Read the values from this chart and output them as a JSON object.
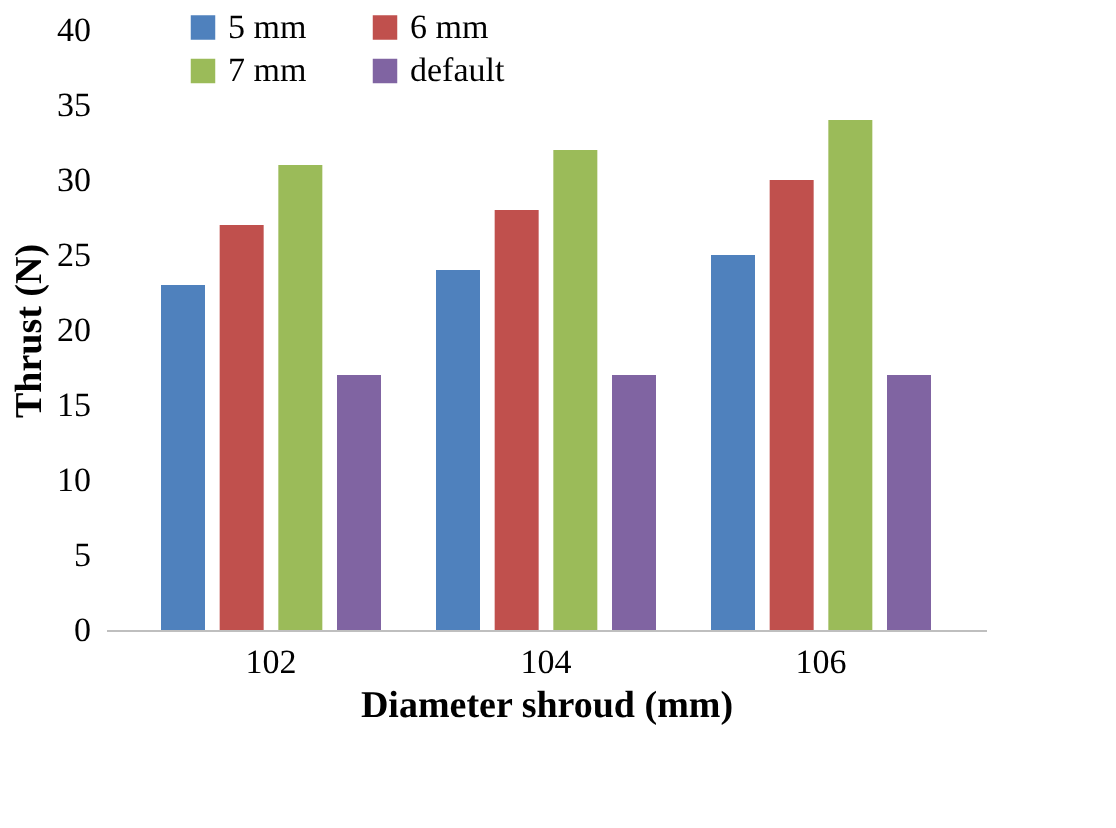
{
  "chart_data": {
    "type": "bar",
    "xlabel": "Diameter shroud (mm)",
    "ylabel": "Thrust (N)",
    "categories": [
      "102",
      "104",
      "106"
    ],
    "series": [
      {
        "name": "5 mm",
        "color": "#4f81bd",
        "values": [
          23,
          24,
          25
        ]
      },
      {
        "name": "6 mm",
        "color": "#c0504d",
        "values": [
          27,
          28,
          30
        ]
      },
      {
        "name": "7 mm",
        "color": "#9bbb59",
        "values": [
          31,
          32,
          34
        ]
      },
      {
        "name": "default",
        "color": "#8064a2",
        "values": [
          17,
          17,
          17
        ]
      }
    ],
    "ylim": [
      0,
      40
    ],
    "yticks": [
      0,
      5,
      10,
      15,
      20,
      25,
      30,
      35,
      40
    ],
    "grid": false,
    "legend": "top"
  }
}
